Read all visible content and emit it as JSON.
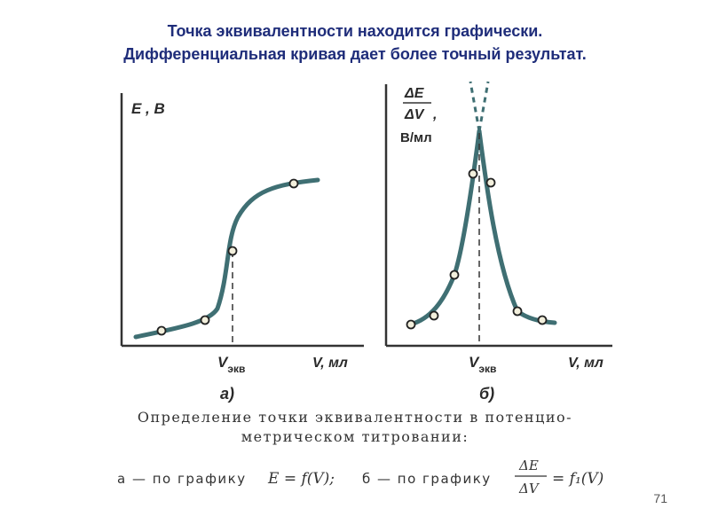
{
  "title": {
    "line1": "Точка эквивалентности находится графически.",
    "line2": "Дифференциальная кривая  дает более точный результат."
  },
  "graph_a": {
    "y_axis_label": "E , В",
    "x_axis_label": "V, мл",
    "eq_label_main": "V",
    "eq_label_sub": "экв",
    "panel_label": "а)"
  },
  "graph_b": {
    "y_axis_numerator": "ΔE",
    "y_axis_denominator": "ΔV",
    "y_axis_comma": ",",
    "y_axis_unit": "В/мл",
    "x_axis_label": "V, мл",
    "eq_label_main": "V",
    "eq_label_sub": "экв",
    "panel_label": "б)"
  },
  "caption": {
    "line1": "Определение точки эквивалентности в потенцио-",
    "line2": "метрическом титровании:"
  },
  "formula": {
    "part_a": "а — по графику",
    "expr_a": "E = f(V);",
    "part_b": "б — по графику",
    "frac_num": "ΔE",
    "frac_den": "ΔV",
    "expr_b": "= f₁(V)"
  },
  "colors": {
    "curve": "#3f6f73",
    "title": "#1f2d7a",
    "marker_fill": "#f2efdc"
  },
  "page_number": "71"
}
